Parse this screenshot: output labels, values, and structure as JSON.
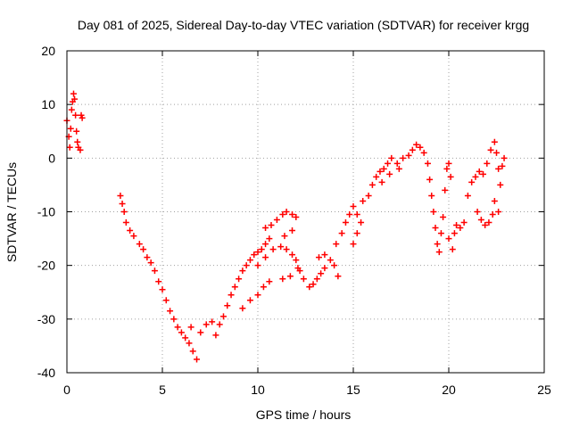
{
  "chart_data": {
    "type": "scatter",
    "title": "Day 081 of 2025, Sidereal Day-to-day VTEC variation (SDTVAR) for receiver krgg",
    "xlabel": "GPS time / hours",
    "ylabel": "SDTVAR / TECUs",
    "xlim": [
      0,
      25
    ],
    "ylim": [
      -40,
      20
    ],
    "x_ticks": [
      0,
      5,
      10,
      15,
      20,
      25
    ],
    "y_ticks": [
      -40,
      -30,
      -20,
      -10,
      0,
      10,
      20
    ],
    "x_tick_labels": [
      "0",
      "5",
      "10",
      "15",
      "20",
      "25"
    ],
    "y_tick_labels": [
      "-40",
      "-30",
      "-20",
      "-10",
      "0",
      "10",
      "20"
    ],
    "grid": true,
    "grid_style": "dotted",
    "legend": "none",
    "marker": "plus",
    "color": "#ff0000",
    "series": [
      {
        "points": [
          [
            0.0,
            7.0
          ],
          [
            0.1,
            4.0
          ],
          [
            0.15,
            2.0
          ],
          [
            0.2,
            5.5
          ],
          [
            0.25,
            9.0
          ],
          [
            0.3,
            10.5
          ],
          [
            0.35,
            12.0
          ],
          [
            0.4,
            11.0
          ],
          [
            0.45,
            8.0
          ],
          [
            0.5,
            5.0
          ],
          [
            0.55,
            3.0
          ],
          [
            0.6,
            2.0
          ],
          [
            0.7,
            1.5
          ],
          [
            0.75,
            8.0
          ],
          [
            0.8,
            7.5
          ],
          [
            2.8,
            -7.0
          ],
          [
            2.9,
            -8.5
          ],
          [
            3.0,
            -10.0
          ],
          [
            3.1,
            -12.0
          ],
          [
            3.3,
            -13.5
          ],
          [
            3.5,
            -14.5
          ],
          [
            3.8,
            -16.0
          ],
          [
            4.0,
            -17.0
          ],
          [
            4.2,
            -18.5
          ],
          [
            4.4,
            -19.5
          ],
          [
            4.6,
            -21.0
          ],
          [
            4.8,
            -23.0
          ],
          [
            5.0,
            -24.5
          ],
          [
            5.2,
            -26.5
          ],
          [
            5.4,
            -28.5
          ],
          [
            5.6,
            -30.0
          ],
          [
            5.8,
            -31.5
          ],
          [
            6.0,
            -32.5
          ],
          [
            6.2,
            -33.5
          ],
          [
            6.4,
            -34.5
          ],
          [
            6.6,
            -36.0
          ],
          [
            6.8,
            -37.5
          ],
          [
            6.5,
            -31.5
          ],
          [
            7.0,
            -32.5
          ],
          [
            7.3,
            -31.0
          ],
          [
            7.6,
            -30.5
          ],
          [
            7.8,
            -33.0
          ],
          [
            8.0,
            -31.0
          ],
          [
            8.2,
            -29.5
          ],
          [
            8.4,
            -27.5
          ],
          [
            8.6,
            -25.5
          ],
          [
            8.8,
            -24.0
          ],
          [
            9.0,
            -22.5
          ],
          [
            9.2,
            -21.0
          ],
          [
            9.4,
            -20.0
          ],
          [
            9.6,
            -19.0
          ],
          [
            9.8,
            -18.0
          ],
          [
            10.0,
            -17.5
          ],
          [
            10.2,
            -17.0
          ],
          [
            10.4,
            -16.0
          ],
          [
            10.6,
            -15.0
          ],
          [
            10.4,
            -13.0
          ],
          [
            10.7,
            -12.5
          ],
          [
            11.0,
            -11.5
          ],
          [
            11.3,
            -10.5
          ],
          [
            11.5,
            -10.0
          ],
          [
            11.8,
            -10.5
          ],
          [
            12.0,
            -11.0
          ],
          [
            11.4,
            -14.5
          ],
          [
            11.8,
            -13.5
          ],
          [
            9.2,
            -28.0
          ],
          [
            9.6,
            -26.5
          ],
          [
            10.0,
            -25.5
          ],
          [
            10.3,
            -24.0
          ],
          [
            10.6,
            -23.0
          ],
          [
            10.0,
            -20.0
          ],
          [
            10.4,
            -18.5
          ],
          [
            10.8,
            -17.0
          ],
          [
            11.2,
            -16.5
          ],
          [
            11.5,
            -17.0
          ],
          [
            11.8,
            -18.0
          ],
          [
            12.0,
            -19.0
          ],
          [
            12.1,
            -20.5
          ],
          [
            11.3,
            -22.5
          ],
          [
            11.7,
            -22.0
          ],
          [
            12.2,
            -21.0
          ],
          [
            12.4,
            -22.5
          ],
          [
            12.7,
            -24.0
          ],
          [
            12.9,
            -23.5
          ],
          [
            13.1,
            -22.5
          ],
          [
            13.3,
            -21.5
          ],
          [
            13.5,
            -20.5
          ],
          [
            13.2,
            -18.5
          ],
          [
            13.5,
            -18.0
          ],
          [
            13.8,
            -19.0
          ],
          [
            14.0,
            -20.0
          ],
          [
            14.2,
            -22.0
          ],
          [
            14.1,
            -16.0
          ],
          [
            14.4,
            -14.0
          ],
          [
            14.6,
            -12.0
          ],
          [
            14.8,
            -10.5
          ],
          [
            15.0,
            -9.0
          ],
          [
            15.2,
            -10.5
          ],
          [
            15.4,
            -12.0
          ],
          [
            15.0,
            -16.0
          ],
          [
            15.2,
            -14.0
          ],
          [
            15.5,
            -8.0
          ],
          [
            15.8,
            -7.0
          ],
          [
            16.0,
            -5.0
          ],
          [
            16.2,
            -3.5
          ],
          [
            16.4,
            -2.5
          ],
          [
            16.6,
            -2.0
          ],
          [
            16.8,
            -1.0
          ],
          [
            17.0,
            0.0
          ],
          [
            17.3,
            -1.0
          ],
          [
            17.6,
            0.0
          ],
          [
            17.9,
            0.5
          ],
          [
            16.5,
            -4.5
          ],
          [
            16.9,
            -3.0
          ],
          [
            17.4,
            -2.0
          ],
          [
            18.1,
            1.5
          ],
          [
            18.3,
            2.5
          ],
          [
            18.5,
            2.0
          ],
          [
            18.7,
            1.0
          ],
          [
            18.9,
            -1.0
          ],
          [
            19.0,
            -4.0
          ],
          [
            19.1,
            -7.0
          ],
          [
            19.2,
            -10.0
          ],
          [
            19.3,
            -13.0
          ],
          [
            19.4,
            -16.0
          ],
          [
            19.5,
            -17.5
          ],
          [
            19.6,
            -14.0
          ],
          [
            19.7,
            -11.0
          ],
          [
            19.8,
            -6.0
          ],
          [
            19.9,
            -2.0
          ],
          [
            20.0,
            -1.0
          ],
          [
            20.1,
            -3.5
          ],
          [
            20.0,
            -15.0
          ],
          [
            20.2,
            -17.0
          ],
          [
            20.3,
            -14.0
          ],
          [
            20.4,
            -12.5
          ],
          [
            20.6,
            -13.0
          ],
          [
            20.8,
            -12.0
          ],
          [
            21.0,
            -7.0
          ],
          [
            21.2,
            -4.5
          ],
          [
            21.4,
            -3.5
          ],
          [
            21.6,
            -2.5
          ],
          [
            21.8,
            -3.0
          ],
          [
            21.5,
            -10.0
          ],
          [
            21.7,
            -11.5
          ],
          [
            21.9,
            -12.5
          ],
          [
            22.1,
            -12.0
          ],
          [
            22.3,
            -10.5
          ],
          [
            22.0,
            -1.0
          ],
          [
            22.2,
            1.5
          ],
          [
            22.4,
            3.0
          ],
          [
            22.5,
            1.0
          ],
          [
            22.6,
            -2.0
          ],
          [
            22.7,
            -5.0
          ],
          [
            22.8,
            -1.5
          ],
          [
            22.9,
            0.0
          ],
          [
            22.4,
            -8.0
          ],
          [
            22.6,
            -10.0
          ]
        ]
      }
    ]
  }
}
